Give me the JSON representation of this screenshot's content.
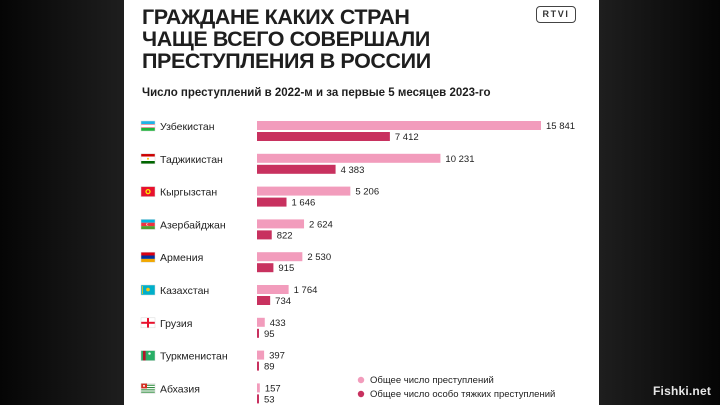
{
  "page": {
    "title_lines": [
      "ГРАЖДАНЕ КАКИХ СТРАН",
      "ЧАЩЕ ВСЕГО СОВЕРШАЛИ",
      "ПРЕСТУПЛЕНИЯ В РОССИИ"
    ],
    "logo": "RTVI",
    "watermark": "Fishki.net"
  },
  "colors": {
    "total": "#f29cbc",
    "grave": "#c8315f",
    "text": "#1e1e1e",
    "background": "#ffffff"
  },
  "chart_data": {
    "type": "bar",
    "orientation": "horizontal",
    "title": "Число преступлений в 2022-м и за первые 5 месяцев 2023-го",
    "xlabel": "",
    "ylabel": "",
    "xlim": [
      0,
      15841
    ],
    "grid": false,
    "legend_position": "bottom-right",
    "categories": [
      "Узбекистан",
      "Таджикистан",
      "Кыргызстан",
      "Азербайджан",
      "Армения",
      "Казахстан",
      "Грузия",
      "Туркменистан",
      "Абхазия"
    ],
    "flags": [
      "uzbekistan-flag",
      "tajikistan-flag",
      "kyrgyzstan-flag",
      "azerbaijan-flag",
      "armenia-flag",
      "kazakhstan-flag",
      "georgia-flag",
      "turkmenistan-flag",
      "abkhazia-flag"
    ],
    "series": [
      {
        "name": "Общее число преступлений",
        "values": [
          15841,
          10231,
          5206,
          2624,
          2530,
          1764,
          433,
          397,
          157
        ],
        "labels": [
          "15 841",
          "10 231",
          "5 206",
          "2 624",
          "2 530",
          "1 764",
          "433",
          "397",
          "157"
        ]
      },
      {
        "name": "Общее число особо тяжких преступлений",
        "values": [
          7412,
          4383,
          1646,
          822,
          915,
          734,
          95,
          89,
          53
        ],
        "labels": [
          "7 412",
          "4 383",
          "1 646",
          "822",
          "915",
          "734",
          "95",
          "89",
          "53"
        ]
      }
    ]
  }
}
